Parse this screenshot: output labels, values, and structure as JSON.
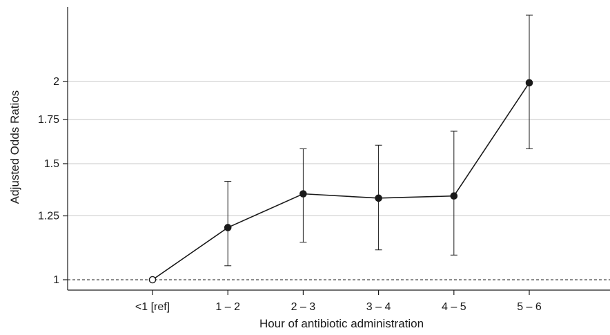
{
  "chart_data": {
    "type": "line",
    "title": "",
    "xlabel": "Hour of antibiotic administration",
    "ylabel": "Adjusted Odds Ratios",
    "categories": [
      "<1 [ref]",
      "1 – 2",
      "2 – 3",
      "3 – 4",
      "4 – 5",
      "5 – 6"
    ],
    "scale": "log",
    "ylim": [
      0.95,
      2.55
    ],
    "yticks": [
      {
        "value": 1,
        "label": "1"
      },
      {
        "value": 1.25,
        "label": "1.25"
      },
      {
        "value": 1.5,
        "label": "1.5"
      },
      {
        "value": 1.75,
        "label": "1.75"
      },
      {
        "value": 2,
        "label": "2"
      }
    ],
    "grid": "horizontal",
    "reference_line": {
      "value": 1,
      "style": "dashed"
    },
    "series": [
      {
        "values": [
          1.0,
          1.2,
          1.35,
          1.33,
          1.34,
          1.99
        ],
        "lower": [
          null,
          1.05,
          1.14,
          1.11,
          1.09,
          1.58
        ],
        "upper": [
          null,
          1.41,
          1.58,
          1.6,
          1.68,
          2.52
        ],
        "markers": [
          "open",
          "filled",
          "filled",
          "filled",
          "filled",
          "filled"
        ]
      }
    ]
  }
}
